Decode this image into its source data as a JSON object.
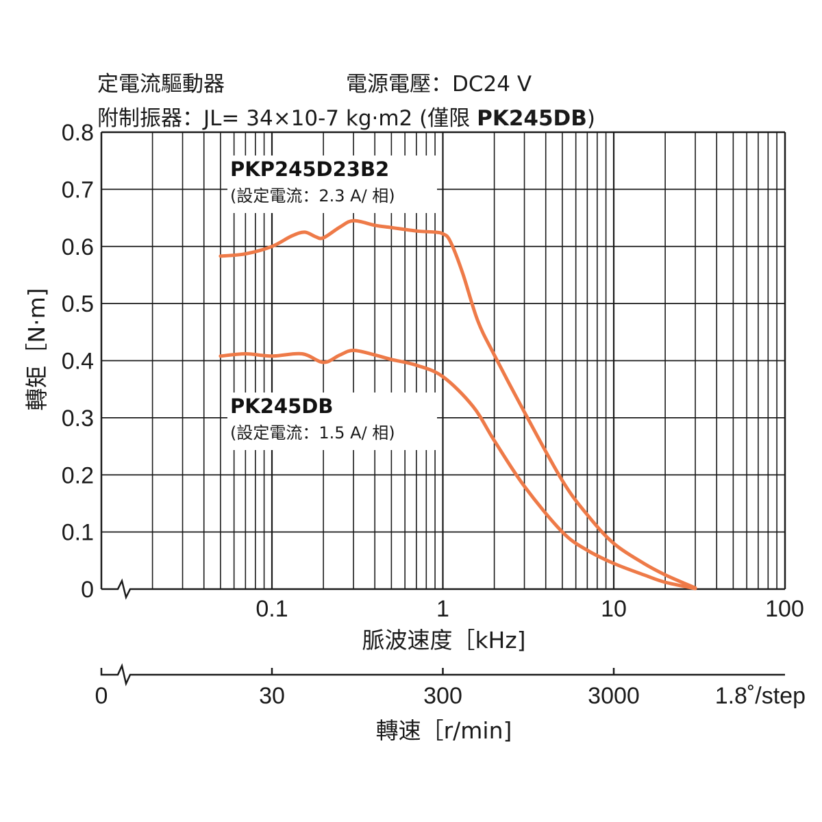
{
  "header": {
    "line1_left": "定電流驅動器",
    "line1_right": "電源電壓：DC24 V",
    "line2_prefix": "附制振器：JL= 34×10-7 kg·m2 (僅限 ",
    "line2_bold": "PK245DB",
    "line2_suffix": ")"
  },
  "colors": {
    "curve": "#ee7a48",
    "grid": "#1a1a1a"
  },
  "chart_data": {
    "type": "line",
    "xscale": "log",
    "xlabel": "脈波速度［kHz]",
    "ylabel": "轉矩［N·m]",
    "xlim": [
      0.01,
      100
    ],
    "ylim": [
      0,
      0.8
    ],
    "x_ticks": [
      {
        "value": 0.1,
        "label": "0.1"
      },
      {
        "value": 1,
        "label": "1"
      },
      {
        "value": 10,
        "label": "10"
      },
      {
        "value": 100,
        "label": "100"
      }
    ],
    "y_ticks": [
      {
        "value": 0,
        "label": "0"
      },
      {
        "value": 0.1,
        "label": "0.1"
      },
      {
        "value": 0.2,
        "label": "0.2"
      },
      {
        "value": 0.3,
        "label": "0.3"
      },
      {
        "value": 0.4,
        "label": "0.4"
      },
      {
        "value": 0.5,
        "label": "0.5"
      },
      {
        "value": 0.6,
        "label": "0.6"
      },
      {
        "value": 0.7,
        "label": "0.7"
      },
      {
        "value": 0.8,
        "label": "0.8"
      }
    ],
    "secondary_axis": {
      "label": "轉速［r/min]",
      "zero_label": "0",
      "ticks": [
        {
          "freq": 0.1,
          "label": "30"
        },
        {
          "freq": 1,
          "label": "300"
        },
        {
          "freq": 10,
          "label": "3000"
        }
      ],
      "step_label": "1.8˚/step"
    },
    "grid": true,
    "axis_break": true,
    "series": [
      {
        "name": "PKP245D23B2",
        "note": "(設定電流：2.3 A/ 相)",
        "points": [
          [
            0.05,
            0.583
          ],
          [
            0.07,
            0.587
          ],
          [
            0.1,
            0.6
          ],
          [
            0.13,
            0.618
          ],
          [
            0.155,
            0.625
          ],
          [
            0.18,
            0.617
          ],
          [
            0.2,
            0.615
          ],
          [
            0.25,
            0.634
          ],
          [
            0.3,
            0.645
          ],
          [
            0.4,
            0.637
          ],
          [
            0.5,
            0.633
          ],
          [
            0.7,
            0.627
          ],
          [
            0.9,
            0.625
          ],
          [
            1.0,
            0.622
          ],
          [
            1.1,
            0.61
          ],
          [
            1.3,
            0.555
          ],
          [
            1.6,
            0.47
          ],
          [
            2.0,
            0.41
          ],
          [
            3.0,
            0.31
          ],
          [
            5.0,
            0.19
          ],
          [
            7.0,
            0.13
          ],
          [
            10.0,
            0.08
          ],
          [
            15.0,
            0.045
          ],
          [
            20.0,
            0.025
          ],
          [
            30.0,
            0.002
          ]
        ]
      },
      {
        "name": "PK245DB",
        "note": "(設定電流：1.5 A/ 相)",
        "points": [
          [
            0.05,
            0.408
          ],
          [
            0.07,
            0.412
          ],
          [
            0.1,
            0.408
          ],
          [
            0.15,
            0.412
          ],
          [
            0.2,
            0.397
          ],
          [
            0.25,
            0.41
          ],
          [
            0.3,
            0.418
          ],
          [
            0.4,
            0.41
          ],
          [
            0.5,
            0.402
          ],
          [
            0.7,
            0.392
          ],
          [
            1.0,
            0.372
          ],
          [
            1.5,
            0.32
          ],
          [
            2.0,
            0.26
          ],
          [
            3.0,
            0.18
          ],
          [
            5.0,
            0.1
          ],
          [
            7.0,
            0.068
          ],
          [
            10.0,
            0.045
          ],
          [
            15.0,
            0.025
          ],
          [
            20.0,
            0.012
          ],
          [
            30.0,
            0.001
          ]
        ]
      }
    ]
  }
}
